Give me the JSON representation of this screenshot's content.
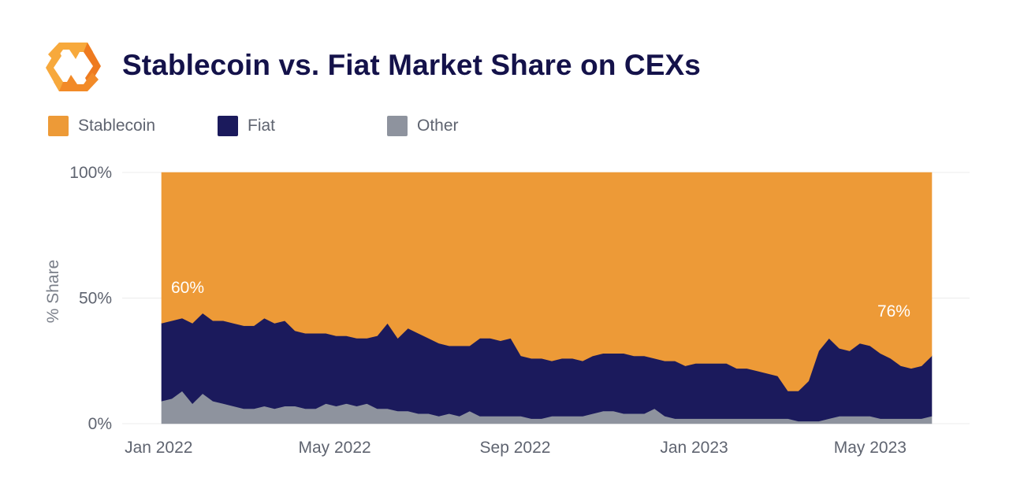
{
  "title": "Stablecoin vs. Fiat Market Share on CEXs",
  "colors": {
    "stablecoin": "#ED9A37",
    "fiat": "#1B1A5C",
    "other": "#8E939E",
    "logo_light": "#F7A93C",
    "logo_dark": "#EE7A1F"
  },
  "legend": [
    {
      "label": "Stablecoin",
      "color": "#ED9A37"
    },
    {
      "label": "Fiat",
      "color": "#1B1A5C"
    },
    {
      "label": "Other",
      "color": "#8E939E"
    }
  ],
  "chart_data": {
    "type": "area",
    "stacked": true,
    "percent_stacked": true,
    "ylabel": "% Share",
    "ylim": [
      0,
      100
    ],
    "yticks": [
      "0%",
      "50%",
      "100%"
    ],
    "xtick_labels": [
      "Jan 2022",
      "May 2022",
      "Sep 2022",
      "Jan 2023",
      "May 2023"
    ],
    "grid": true,
    "legend_position": "top-left",
    "annotations": [
      {
        "text": "60%",
        "x": "2022-01-03"
      },
      {
        "text": "76%",
        "x": "2023-06-05"
      }
    ],
    "x": [
      "2022-01-03",
      "2022-01-10",
      "2022-01-17",
      "2022-01-24",
      "2022-01-31",
      "2022-02-07",
      "2022-02-14",
      "2022-02-21",
      "2022-02-28",
      "2022-03-07",
      "2022-03-14",
      "2022-03-21",
      "2022-03-28",
      "2022-04-04",
      "2022-04-11",
      "2022-04-18",
      "2022-04-25",
      "2022-05-02",
      "2022-05-09",
      "2022-05-16",
      "2022-05-23",
      "2022-05-30",
      "2022-06-06",
      "2022-06-13",
      "2022-06-20",
      "2022-06-27",
      "2022-07-04",
      "2022-07-11",
      "2022-07-18",
      "2022-07-25",
      "2022-08-01",
      "2022-08-08",
      "2022-08-15",
      "2022-08-22",
      "2022-08-29",
      "2022-09-05",
      "2022-09-12",
      "2022-09-19",
      "2022-09-26",
      "2022-10-03",
      "2022-10-10",
      "2022-10-17",
      "2022-10-24",
      "2022-10-31",
      "2022-11-07",
      "2022-11-14",
      "2022-11-21",
      "2022-11-28",
      "2022-12-05",
      "2022-12-12",
      "2022-12-19",
      "2022-12-26",
      "2023-01-02",
      "2023-01-09",
      "2023-01-16",
      "2023-01-23",
      "2023-01-30",
      "2023-02-06",
      "2023-02-13",
      "2023-02-20",
      "2023-02-27",
      "2023-03-06",
      "2023-03-13",
      "2023-03-20",
      "2023-03-27",
      "2023-04-03",
      "2023-04-10",
      "2023-04-17",
      "2023-04-24",
      "2023-05-01",
      "2023-05-08",
      "2023-05-15",
      "2023-05-22",
      "2023-05-29",
      "2023-06-05",
      "2023-06-12"
    ],
    "series": [
      {
        "name": "Other",
        "values": [
          9,
          10,
          13,
          8,
          12,
          9,
          8,
          7,
          6,
          6,
          7,
          6,
          7,
          7,
          6,
          6,
          8,
          7,
          8,
          7,
          8,
          6,
          6,
          5,
          5,
          4,
          4,
          3,
          4,
          3,
          5,
          3,
          3,
          3,
          3,
          3,
          2,
          2,
          3,
          3,
          3,
          3,
          4,
          5,
          5,
          4,
          4,
          4,
          6,
          3,
          2,
          2,
          2,
          2,
          2,
          2,
          2,
          2,
          2,
          2,
          2,
          2,
          1,
          1,
          1,
          2,
          3,
          3,
          3,
          3,
          2,
          2,
          2,
          2,
          2,
          3
        ]
      },
      {
        "name": "Fiat",
        "values": [
          31,
          31,
          29,
          32,
          32,
          32,
          33,
          33,
          33,
          33,
          35,
          34,
          34,
          30,
          30,
          30,
          28,
          28,
          27,
          27,
          26,
          29,
          34,
          29,
          33,
          32,
          30,
          29,
          27,
          28,
          26,
          31,
          31,
          30,
          31,
          24,
          24,
          24,
          22,
          23,
          23,
          22,
          23,
          23,
          23,
          24,
          23,
          23,
          20,
          22,
          23,
          21,
          22,
          22,
          22,
          22,
          20,
          20,
          19,
          18,
          17,
          11,
          12,
          16,
          28,
          32,
          27,
          26,
          29,
          28,
          26,
          24,
          21,
          20,
          21,
          24
        ]
      },
      {
        "name": "Stablecoin",
        "values": [
          60,
          59,
          58,
          60,
          56,
          59,
          59,
          60,
          61,
          61,
          58,
          60,
          59,
          63,
          64,
          64,
          64,
          65,
          65,
          66,
          66,
          65,
          60,
          66,
          62,
          64,
          66,
          68,
          69,
          69,
          69,
          66,
          66,
          67,
          66,
          73,
          74,
          74,
          75,
          74,
          74,
          75,
          73,
          72,
          72,
          72,
          73,
          73,
          74,
          75,
          75,
          77,
          76,
          76,
          76,
          76,
          78,
          78,
          79,
          80,
          81,
          87,
          87,
          83,
          71,
          66,
          70,
          71,
          68,
          69,
          72,
          74,
          77,
          78,
          77,
          73
        ]
      }
    ]
  }
}
